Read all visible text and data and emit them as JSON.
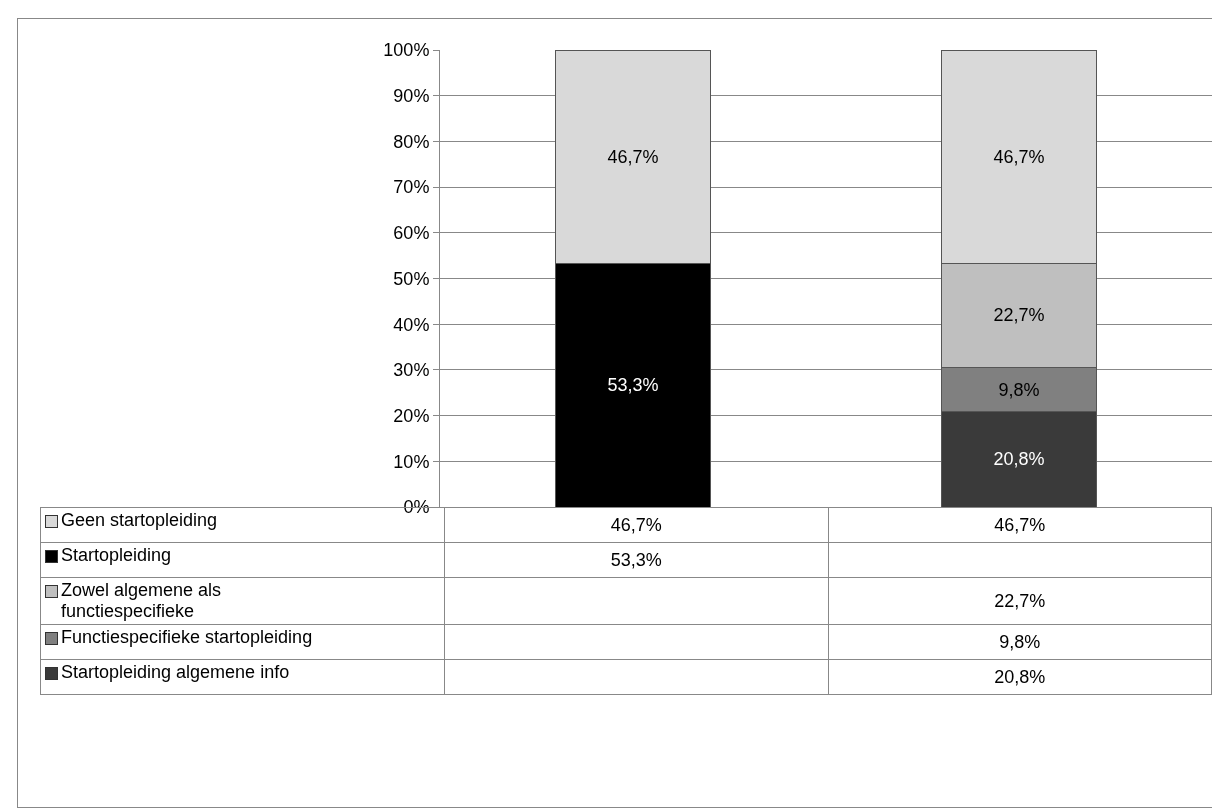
{
  "chart_data": {
    "type": "bar",
    "stacked": true,
    "categories": [
      null,
      null
    ],
    "ylim": [
      0,
      100
    ],
    "yticks": [
      {
        "value": 0,
        "label": "0%"
      },
      {
        "value": 10,
        "label": "10%"
      },
      {
        "value": 20,
        "label": "20%"
      },
      {
        "value": 30,
        "label": "30%"
      },
      {
        "value": 40,
        "label": "40%"
      },
      {
        "value": 50,
        "label": "50%"
      },
      {
        "value": 60,
        "label": "60%"
      },
      {
        "value": 70,
        "label": "70%"
      },
      {
        "value": 80,
        "label": "80%"
      },
      {
        "value": 90,
        "label": "90%"
      },
      {
        "value": 100,
        "label": "100%"
      }
    ],
    "grid": "y",
    "legend": "bottom",
    "series": [
      {
        "name": "Startopleiding algemene info",
        "color": "#3a3a3a",
        "values": [
          null,
          20.8
        ],
        "value_labels": [
          null,
          "20,8%"
        ]
      },
      {
        "name": "Functiespecifieke startopleiding",
        "color": "#808080",
        "values": [
          null,
          9.8
        ],
        "value_labels": [
          null,
          "9,8%"
        ]
      },
      {
        "name": "Zowel algemene als functiespecifieke",
        "color": "#bfbfbf",
        "values": [
          null,
          22.7
        ],
        "value_labels": [
          null,
          "22,7%"
        ]
      },
      {
        "name": "Startopleiding",
        "color": "#000000",
        "values": [
          53.3,
          null
        ],
        "value_labels": [
          "53,3%",
          null
        ]
      },
      {
        "name": "Geen startopleiding",
        "color": "#d9d9d9",
        "values": [
          46.7,
          46.7
        ],
        "value_labels": [
          "46,7%",
          "46,7%"
        ]
      }
    ]
  }
}
